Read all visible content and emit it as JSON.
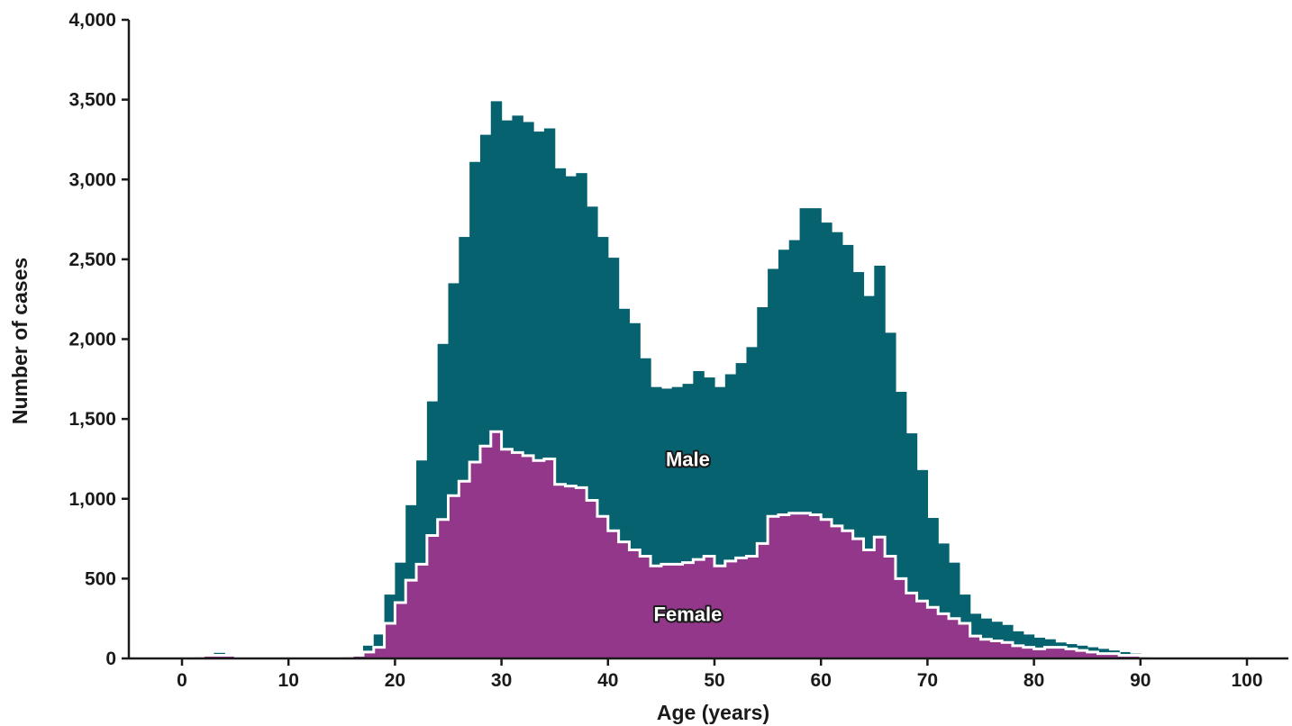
{
  "chart_data": {
    "type": "area",
    "xlabel": "Age (years)",
    "ylabel": "Number of cases",
    "xlim": [
      -5,
      105
    ],
    "ylim": [
      0,
      4000
    ],
    "xticks": [
      0,
      10,
      20,
      30,
      40,
      50,
      60,
      70,
      80,
      90,
      100
    ],
    "yticks": [
      0,
      500,
      1000,
      1500,
      2000,
      2500,
      3000,
      3500,
      4000
    ],
    "xtick_labels": [
      "0",
      "10",
      "20",
      "30",
      "40",
      "50",
      "60",
      "70",
      "80",
      "90",
      "100"
    ],
    "ytick_labels": [
      "0",
      "500",
      "1,000",
      "1,500",
      "2,000",
      "2,500",
      "3,000",
      "3,500",
      "4,000"
    ],
    "bin_start": 0,
    "bin_width": 1,
    "grid": false,
    "legend": "none",
    "series": [
      {
        "name": "Male",
        "color": "#06626f",
        "values": [
          0,
          15,
          20,
          35,
          20,
          0,
          0,
          0,
          0,
          0,
          0,
          0,
          0,
          0,
          10,
          15,
          20,
          80,
          150,
          400,
          600,
          960,
          1240,
          1610,
          1970,
          2350,
          2640,
          3110,
          3280,
          3490,
          3370,
          3400,
          3360,
          3300,
          3320,
          3070,
          3020,
          3040,
          2830,
          2640,
          2510,
          2190,
          2100,
          1880,
          1700,
          1690,
          1700,
          1720,
          1800,
          1760,
          1700,
          1780,
          1850,
          1950,
          2200,
          2440,
          2560,
          2620,
          2820,
          2820,
          2730,
          2670,
          2590,
          2420,
          2270,
          2460,
          2040,
          1670,
          1410,
          1180,
          880,
          720,
          600,
          400,
          280,
          250,
          230,
          210,
          170,
          150,
          130,
          120,
          100,
          90,
          80,
          70,
          60,
          50,
          40,
          30,
          20,
          10,
          0,
          0,
          0,
          0,
          0,
          0,
          0,
          0,
          0,
          0
        ]
      },
      {
        "name": "Female",
        "color": "#93378a",
        "values": [
          0,
          15,
          20,
          20,
          20,
          0,
          0,
          0,
          0,
          0,
          0,
          0,
          0,
          0,
          10,
          15,
          20,
          40,
          70,
          220,
          350,
          490,
          590,
          770,
          870,
          1020,
          1110,
          1230,
          1330,
          1420,
          1310,
          1290,
          1270,
          1240,
          1250,
          1090,
          1080,
          1070,
          990,
          890,
          800,
          730,
          680,
          640,
          580,
          590,
          590,
          600,
          620,
          640,
          580,
          610,
          630,
          640,
          720,
          890,
          900,
          910,
          910,
          900,
          870,
          830,
          800,
          750,
          680,
          760,
          640,
          500,
          410,
          360,
          320,
          280,
          250,
          220,
          140,
          120,
          110,
          100,
          80,
          70,
          60,
          70,
          70,
          60,
          50,
          40,
          30,
          30,
          20,
          20,
          15,
          10,
          0,
          0,
          0,
          0,
          0,
          0,
          0,
          0,
          0,
          0
        ]
      }
    ],
    "annotations": [
      {
        "text": "Male",
        "x": 47.5,
        "y": 1250
      },
      {
        "text": "Female",
        "x": 47.5,
        "y": 280
      }
    ]
  }
}
